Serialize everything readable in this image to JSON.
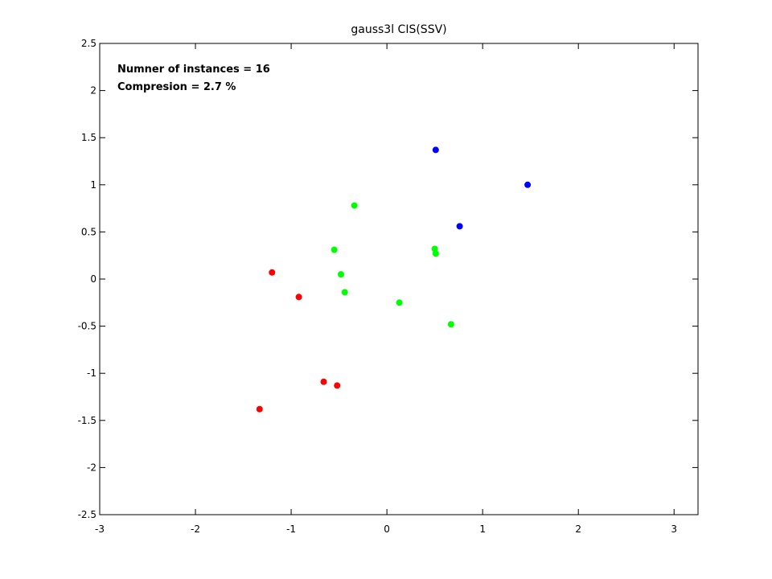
{
  "chart_data": {
    "type": "scatter",
    "title": "gauss3l CIS(SSV)",
    "xlabel": "",
    "ylabel": "",
    "xlim": [
      -3,
      3.25
    ],
    "ylim": [
      -2.5,
      2.5
    ],
    "xticks": [
      -3,
      -2,
      -1,
      0,
      1,
      2,
      3
    ],
    "xtick_labels": [
      "-3",
      "-2",
      "-1",
      "0",
      "1",
      "2",
      "3"
    ],
    "yticks": [
      -2.5,
      -2,
      -1.5,
      -1,
      -0.5,
      0,
      0.5,
      1,
      1.5,
      2,
      2.5
    ],
    "ytick_labels": [
      "-2.5",
      "-2",
      "-1.5",
      "-1",
      "-0.5",
      "0",
      "0.5",
      "1",
      "1.5",
      "2",
      "2.5"
    ],
    "grid": false,
    "annotations": [
      "Numner of instances = 16",
      "Compresion = 2.7 %"
    ],
    "series": [
      {
        "color": "#ff0000",
        "points": [
          [
            -1.2,
            0.07
          ],
          [
            -0.92,
            -0.19
          ],
          [
            -0.66,
            -1.09
          ],
          [
            -0.52,
            -1.13
          ],
          [
            -1.33,
            -1.38
          ]
        ]
      },
      {
        "color": "#00ff00",
        "points": [
          [
            -0.34,
            0.78
          ],
          [
            -0.55,
            0.31
          ],
          [
            -0.48,
            0.05
          ],
          [
            -0.44,
            -0.14
          ],
          [
            0.13,
            -0.25
          ],
          [
            0.5,
            0.32
          ],
          [
            0.51,
            0.27
          ],
          [
            0.67,
            -0.48
          ]
        ]
      },
      {
        "color": "#0000ff",
        "points": [
          [
            0.51,
            1.37
          ],
          [
            0.76,
            0.56
          ],
          [
            1.47,
            1.0
          ]
        ]
      }
    ]
  }
}
